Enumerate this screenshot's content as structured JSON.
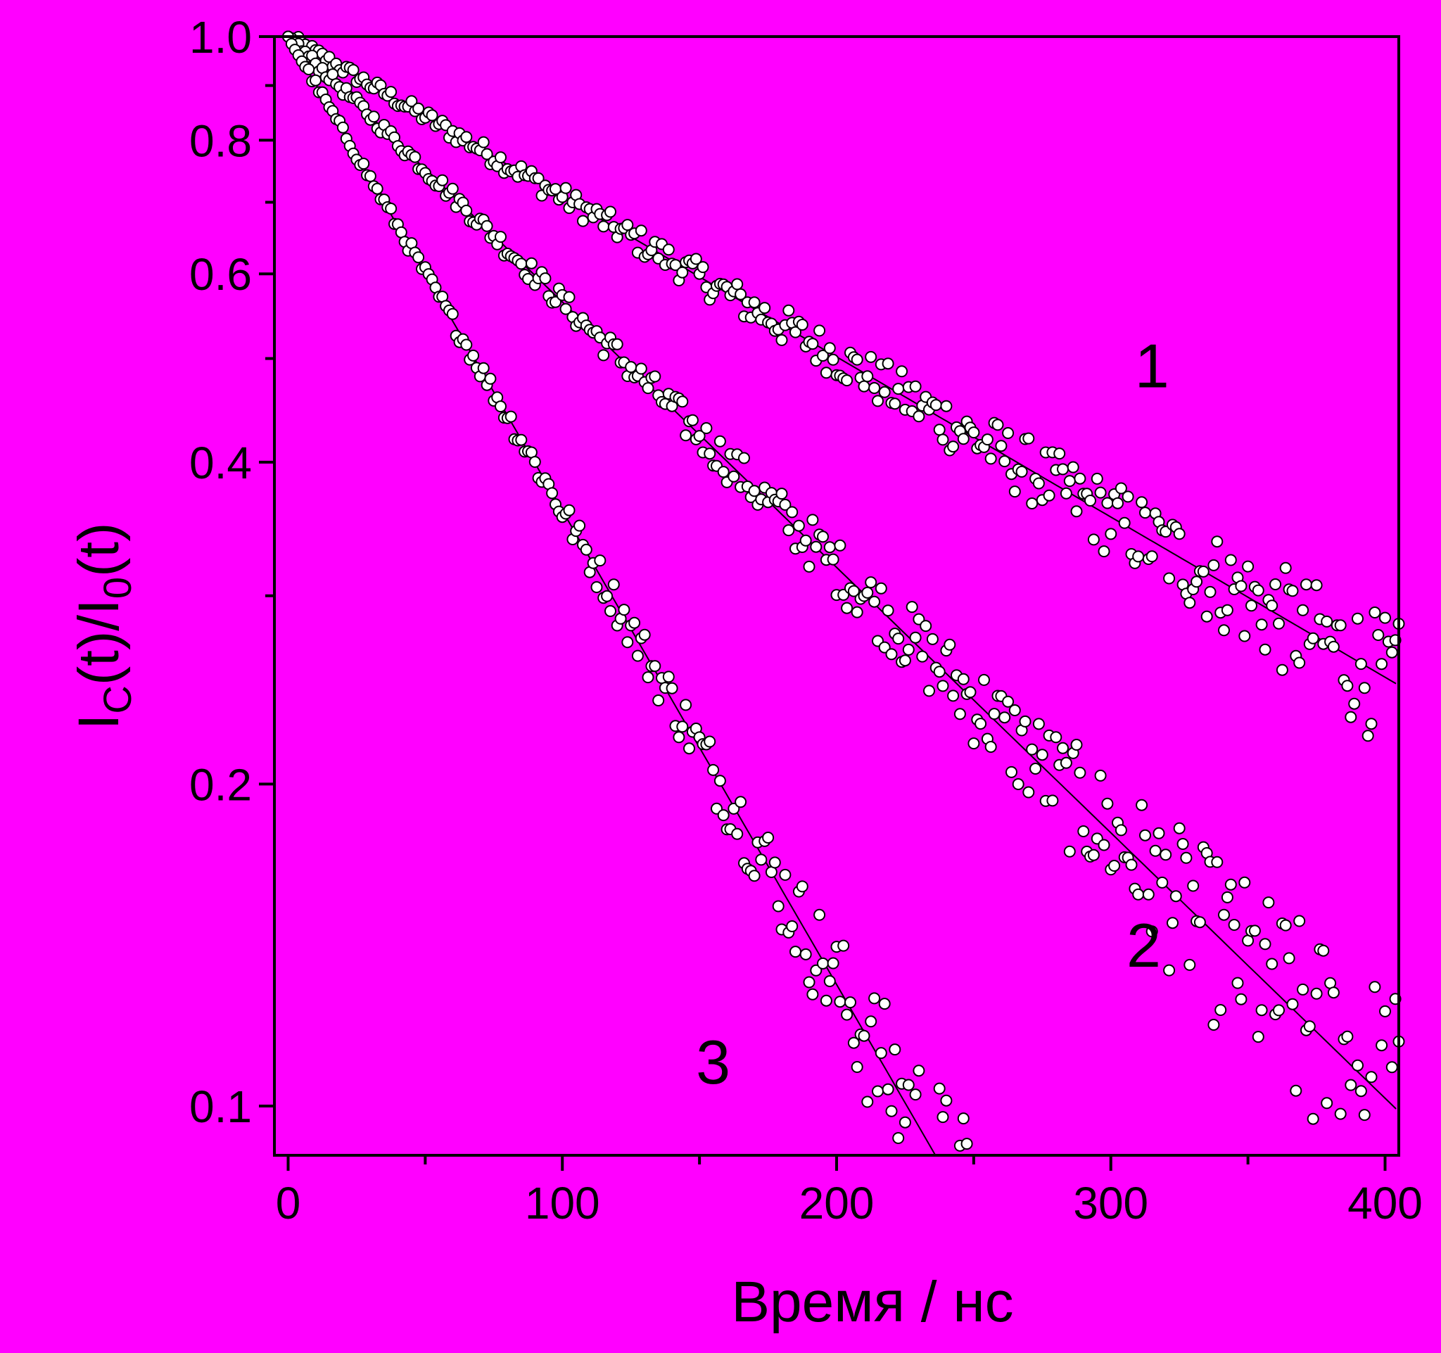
{
  "chart_data": {
    "type": "scatter",
    "xlabel": "Время / нс",
    "ylabel": {
      "main": "I",
      "sub1": "C",
      "mid": "(t)/I",
      "sub2": "0",
      "end": "(t)"
    },
    "xlim": [
      -5,
      405
    ],
    "ylim": [
      0.09,
      1.0
    ],
    "yscale": "linear",
    "xticks": [
      0,
      100,
      200,
      300,
      400
    ],
    "xtick_labels": [
      "0",
      "100",
      "200",
      "300",
      "400"
    ],
    "yticks": [
      0.1,
      0.2,
      0.4,
      0.6,
      0.8,
      1.0
    ],
    "ytick_labels": [
      "0.1",
      "0.2",
      "0.4",
      "0.6",
      "0.8",
      "1.0"
    ],
    "grid": false,
    "legend": "none",
    "colors": {
      "background": "#ff00ff",
      "marker_fill": "#ffffff",
      "marker_edge": "#000000",
      "line": "#000000"
    },
    "annotations": [
      {
        "text": "1",
        "x": 315,
        "y": 0.47
      },
      {
        "text": "2",
        "x": 312,
        "y": 0.135
      },
      {
        "text": "3",
        "x": 155,
        "y": 0.105
      }
    ],
    "series": [
      {
        "label": "1",
        "tau_ns": 290,
        "scatter": 0.012,
        "x_range": [
          0,
          405
        ],
        "x": [
          0,
          50,
          100,
          150,
          200,
          250,
          300,
          350,
          400
        ],
        "y": [
          1.0,
          0.84,
          0.71,
          0.6,
          0.5,
          0.42,
          0.355,
          0.3,
          0.25
        ]
      },
      {
        "label": "2",
        "tau_ns": 175,
        "scatter": 0.01,
        "x_range": [
          0,
          405
        ],
        "x": [
          0,
          50,
          100,
          150,
          200,
          250,
          300,
          350,
          400
        ],
        "y": [
          1.0,
          0.75,
          0.56,
          0.42,
          0.32,
          0.24,
          0.18,
          0.135,
          0.1
        ]
      },
      {
        "label": "3",
        "tau_ns": 98,
        "scatter": 0.008,
        "x_range": [
          0,
          250
        ],
        "x": [
          0,
          50,
          100,
          150,
          200,
          250
        ],
        "y": [
          1.0,
          0.6,
          0.36,
          0.215,
          0.13,
          0.078
        ]
      }
    ]
  }
}
